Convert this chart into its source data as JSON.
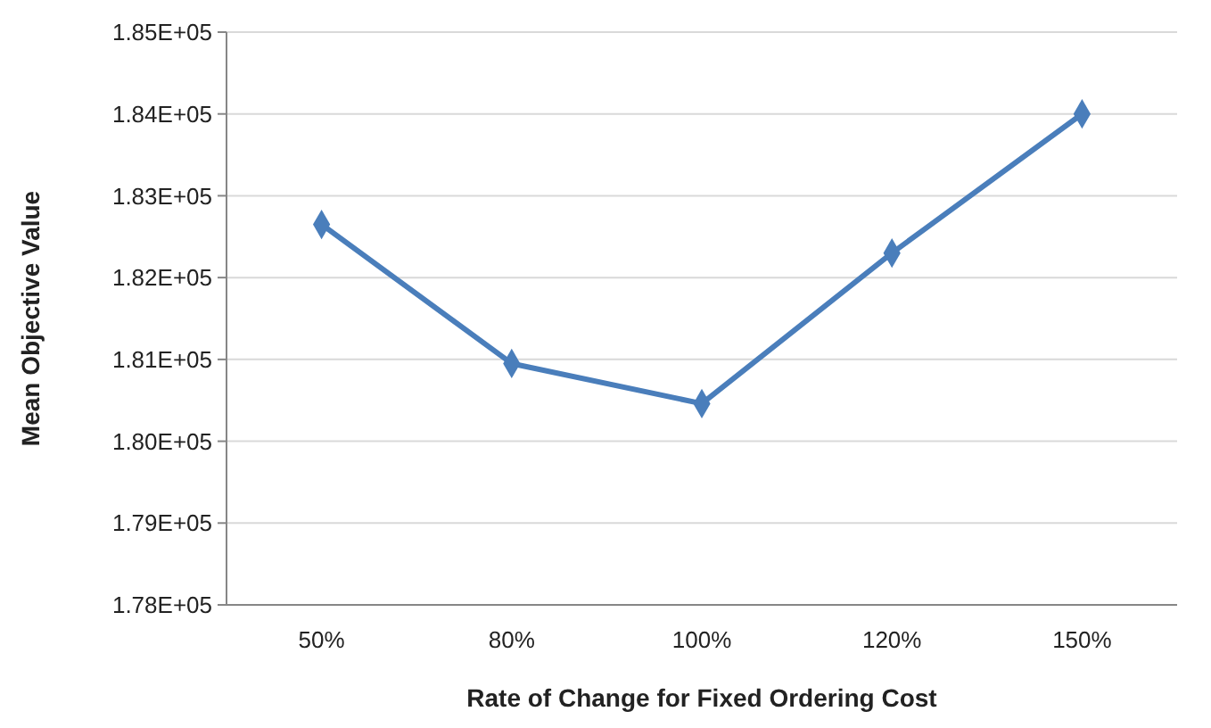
{
  "chart_data": {
    "type": "line",
    "xlabel": "Rate of Change for Fixed Ordering Cost",
    "ylabel": "Mean Objective Value",
    "categories": [
      "50%",
      "80%",
      "100%",
      "120%",
      "150%"
    ],
    "series": [
      {
        "color": "#4a7ebb",
        "values": [
          182650,
          180950,
          180460,
          182300,
          184000
        ]
      }
    ],
    "ylim": [
      178000,
      185000
    ],
    "yticks": [
      {
        "value": 178000,
        "label": "1.78E+05"
      },
      {
        "value": 179000,
        "label": "1.79E+05"
      },
      {
        "value": 180000,
        "label": "1.80E+05"
      },
      {
        "value": 181000,
        "label": "1.81E+05"
      },
      {
        "value": 182000,
        "label": "1.82E+05"
      },
      {
        "value": 183000,
        "label": "1.83E+05"
      },
      {
        "value": 184000,
        "label": "1.84E+05"
      },
      {
        "value": 185000,
        "label": "1.85E+05"
      }
    ],
    "grid": "y",
    "marker": "diamond",
    "line_style": "solid"
  }
}
